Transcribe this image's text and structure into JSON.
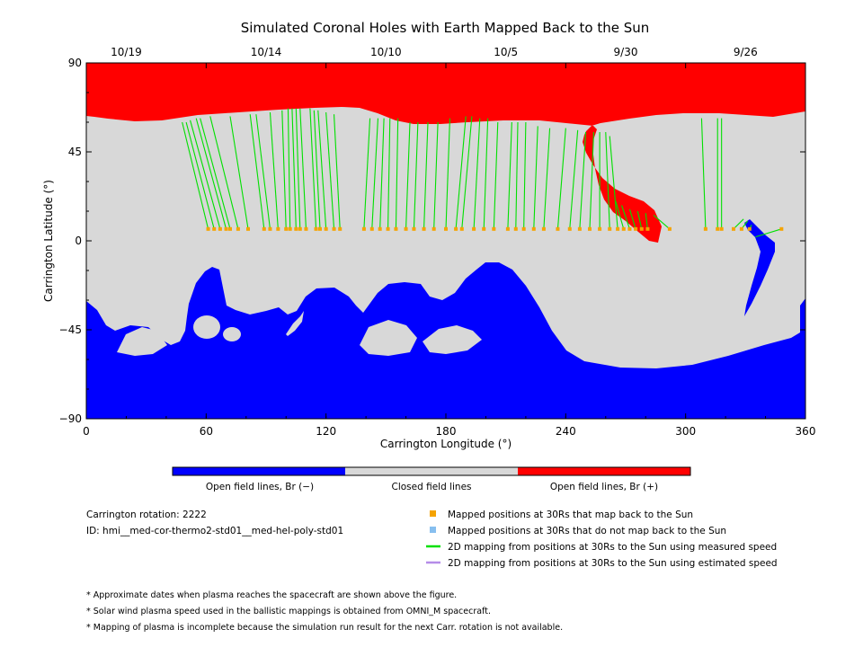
{
  "chart_data": {
    "type": "map",
    "title": "Simulated Coronal Holes with Earth Mapped Back to the Sun",
    "xlabel": "Carrington Longitude (°)",
    "ylabel": "Carrington Latitude (°)",
    "xlim": [
      0,
      360
    ],
    "ylim": [
      -90,
      90
    ],
    "x_ticks": [
      "0",
      "60",
      "120",
      "180",
      "240",
      "300",
      "360"
    ],
    "y_ticks": [
      "90",
      "45",
      "0",
      "−45",
      "−90"
    ],
    "date_ticks": [
      {
        "label": "10/19",
        "lon": 20
      },
      {
        "label": "10/14",
        "lon": 90
      },
      {
        "label": "10/10",
        "lon": 150
      },
      {
        "label": "10/5",
        "lon": 210
      },
      {
        "label": "9/30",
        "lon": 270
      },
      {
        "label": "9/26",
        "lon": 330
      }
    ],
    "colors": {
      "open_negative": "#0000ff",
      "closed": "#d8d8d8",
      "open_positive": "#ff0000",
      "mapped_point": "#f5a300",
      "unmapped_point": "#87bfef",
      "measured_line": "#00e000",
      "estimated_line": "#b58ce8"
    },
    "colorbar": {
      "labels": [
        "Open field lines, Br (−)",
        "Closed field lines",
        "Open field lines, Br (+)"
      ]
    },
    "info": {
      "rotation": "Carrington rotation: 2222",
      "id": "ID: hmi__med-cor-thermo2-std01__med-hel-poly-std01"
    },
    "legend": [
      {
        "marker": "square",
        "color": "#f5a300",
        "label": "Mapped positions at 30Rs that map back to the Sun"
      },
      {
        "marker": "square",
        "color": "#87bfef",
        "label": "Mapped positions at 30Rs that do not map back to the Sun"
      },
      {
        "marker": "line",
        "color": "#00e000",
        "label": "2D mapping from positions at 30Rs to the Sun using measured speed"
      },
      {
        "marker": "line",
        "color": "#b58ce8",
        "label": "2D mapping from positions at 30Rs to the Sun using estimated speed"
      }
    ],
    "notes": [
      "* Approximate dates when plasma reaches the spacecraft are shown above the figure.",
      "* Solar wind plasma speed used in the ballistic mappings is obtained from OMNI_M spacecraft.",
      "* Mapping of plasma is incomplete because the simulation run result for the next Carr. rotation is not available."
    ],
    "mapped_points_latitude": 6,
    "mappings": [
      {
        "lon": 61,
        "sun_lon": 48,
        "sun_lat": 60
      },
      {
        "lon": 64,
        "sun_lon": 50,
        "sun_lat": 60
      },
      {
        "lon": 67,
        "sun_lon": 52,
        "sun_lat": 61
      },
      {
        "lon": 70,
        "sun_lon": 55,
        "sun_lat": 62
      },
      {
        "lon": 72,
        "sun_lon": 57,
        "sun_lat": 62
      },
      {
        "lon": 76,
        "sun_lon": 62,
        "sun_lat": 63
      },
      {
        "lon": 81,
        "sun_lon": 72,
        "sun_lat": 63
      },
      {
        "lon": 89,
        "sun_lon": 82,
        "sun_lat": 64
      },
      {
        "lon": 92,
        "sun_lon": 85,
        "sun_lat": 64
      },
      {
        "lon": 96,
        "sun_lon": 92,
        "sun_lat": 65
      },
      {
        "lon": 100,
        "sun_lon": 98,
        "sun_lat": 66
      },
      {
        "lon": 102,
        "sun_lon": 101,
        "sun_lat": 67
      },
      {
        "lon": 105,
        "sun_lon": 103,
        "sun_lat": 67
      },
      {
        "lon": 107,
        "sun_lon": 105,
        "sun_lat": 67
      },
      {
        "lon": 110,
        "sun_lon": 107,
        "sun_lat": 67
      },
      {
        "lon": 115,
        "sun_lon": 112,
        "sun_lat": 67
      },
      {
        "lon": 117,
        "sun_lon": 114,
        "sun_lat": 66
      },
      {
        "lon": 120,
        "sun_lon": 116,
        "sun_lat": 66
      },
      {
        "lon": 124,
        "sun_lon": 120,
        "sun_lat": 65
      },
      {
        "lon": 127,
        "sun_lon": 124,
        "sun_lat": 64
      },
      {
        "lon": 139,
        "sun_lon": 142,
        "sun_lat": 62
      },
      {
        "lon": 143,
        "sun_lon": 146,
        "sun_lat": 62
      },
      {
        "lon": 147,
        "sun_lon": 149,
        "sun_lat": 62
      },
      {
        "lon": 151,
        "sun_lon": 152,
        "sun_lat": 62
      },
      {
        "lon": 155,
        "sun_lon": 156,
        "sun_lat": 62
      },
      {
        "lon": 160,
        "sun_lon": 162,
        "sun_lat": 60
      },
      {
        "lon": 164,
        "sun_lon": 166,
        "sun_lat": 60
      },
      {
        "lon": 169,
        "sun_lon": 171,
        "sun_lat": 60
      },
      {
        "lon": 174,
        "sun_lon": 176,
        "sun_lat": 60
      },
      {
        "lon": 180,
        "sun_lon": 182,
        "sun_lat": 62
      },
      {
        "lon": 185,
        "sun_lon": 190,
        "sun_lat": 63
      },
      {
        "lon": 188,
        "sun_lon": 193,
        "sun_lat": 63
      },
      {
        "lon": 194,
        "sun_lon": 197,
        "sun_lat": 62
      },
      {
        "lon": 199,
        "sun_lon": 201,
        "sun_lat": 62
      },
      {
        "lon": 204,
        "sun_lon": 206,
        "sun_lat": 60
      },
      {
        "lon": 211,
        "sun_lon": 213,
        "sun_lat": 60
      },
      {
        "lon": 215,
        "sun_lon": 216,
        "sun_lat": 60
      },
      {
        "lon": 219,
        "sun_lon": 220,
        "sun_lat": 60
      },
      {
        "lon": 224,
        "sun_lon": 226,
        "sun_lat": 58
      },
      {
        "lon": 229,
        "sun_lon": 232,
        "sun_lat": 57
      },
      {
        "lon": 236,
        "sun_lon": 240,
        "sun_lat": 57
      },
      {
        "lon": 242,
        "sun_lon": 246,
        "sun_lat": 56
      },
      {
        "lon": 247,
        "sun_lon": 250,
        "sun_lat": 55
      },
      {
        "lon": 252,
        "sun_lon": 254,
        "sun_lat": 55
      },
      {
        "lon": 257,
        "sun_lon": 257,
        "sun_lat": 55
      },
      {
        "lon": 262,
        "sun_lon": 260,
        "sun_lat": 55
      },
      {
        "lon": 266,
        "sun_lon": 262,
        "sun_lat": 53
      },
      {
        "lon": 269,
        "sun_lon": 265,
        "sun_lat": 20
      },
      {
        "lon": 272,
        "sun_lon": 268,
        "sun_lat": 18
      },
      {
        "lon": 275,
        "sun_lon": 272,
        "sun_lat": 16
      },
      {
        "lon": 278,
        "sun_lon": 276,
        "sun_lat": 15
      },
      {
        "lon": 281,
        "sun_lon": 280,
        "sun_lat": 14
      },
      {
        "lon": 292,
        "sun_lon": 284,
        "sun_lat": 13
      },
      {
        "lon": 310,
        "sun_lon": 308,
        "sun_lat": 62
      },
      {
        "lon": 316,
        "sun_lon": 316,
        "sun_lat": 62
      },
      {
        "lon": 318,
        "sun_lon": 318,
        "sun_lat": 62
      },
      {
        "lon": 324,
        "sun_lon": 329,
        "sun_lat": 11
      },
      {
        "lon": 328,
        "sun_lon": 331,
        "sun_lat": 10
      },
      {
        "lon": 332,
        "sun_lon": 333,
        "sun_lat": 8
      },
      {
        "lon": 348,
        "sun_lon": 335,
        "sun_lat": 2
      }
    ]
  }
}
